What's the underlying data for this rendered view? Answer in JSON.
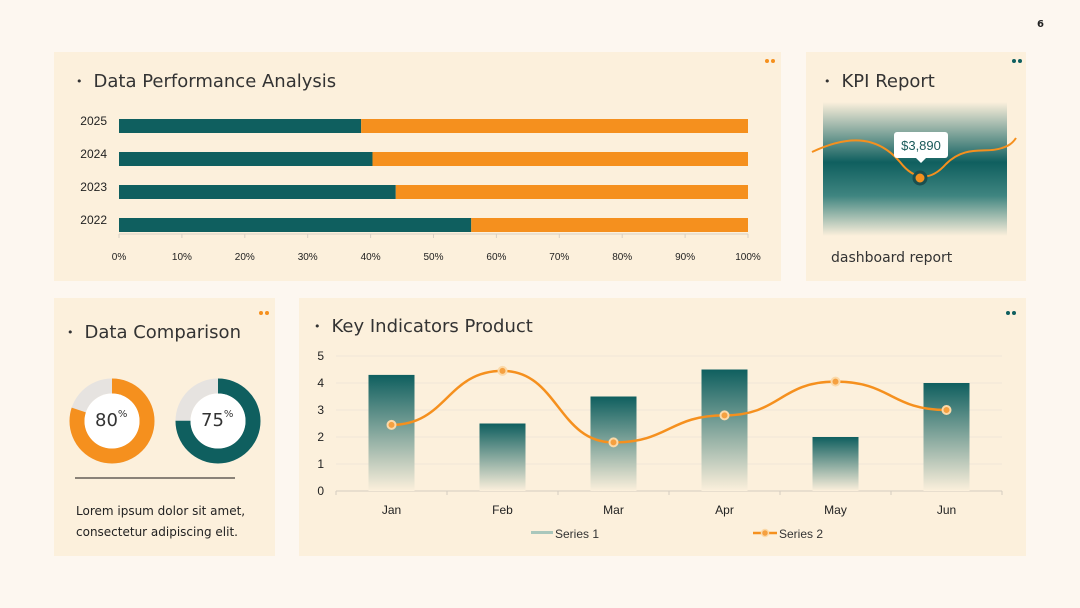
{
  "page_number": "6",
  "colors": {
    "teal": "#0f5f5f",
    "orange": "#f5901e",
    "grey": "#e6e3e0"
  },
  "perf": {
    "title": "Data Performance Analysis",
    "chart": {
      "type": "bar",
      "orientation": "horizontal-stacked-100",
      "categories": [
        "2025",
        "2024",
        "2023",
        "2022"
      ],
      "series": [
        {
          "values": [
            38.5,
            40.3,
            44,
            56
          ],
          "color": "#0f5f5f"
        },
        {
          "values": [
            61.5,
            59.7,
            56,
            44
          ],
          "color": "#f5901e"
        }
      ],
      "x_ticks": [
        "0%",
        "10%",
        "20%",
        "30%",
        "40%",
        "50%",
        "60%",
        "70%",
        "80%",
        "90%",
        "100%"
      ],
      "xlim": [
        0,
        100
      ]
    }
  },
  "kpi": {
    "title": "KPI Report",
    "value": "$3,890",
    "subtitle": "dashboard report"
  },
  "comparison": {
    "title": "Data Comparison",
    "donut1": {
      "value": 80,
      "label": "80",
      "unit": "%"
    },
    "donut2": {
      "value": 75,
      "label": "75",
      "unit": "%"
    },
    "text_line1": "Lorem ipsum dolor sit amet,",
    "text_line2": "consectetur adipiscing elit."
  },
  "key": {
    "title": "Key Indicators Product",
    "chart": {
      "type": "bar",
      "categories": [
        "Jan",
        "Feb",
        "Mar",
        "Apr",
        "May",
        "Jun"
      ],
      "series": [
        {
          "name": "Series 1",
          "type": "bar",
          "values": [
            4.3,
            2.5,
            3.5,
            4.5,
            2.0,
            4.0
          ]
        },
        {
          "name": "Series 2",
          "type": "line",
          "values": [
            2.45,
            4.45,
            1.8,
            2.8,
            4.05,
            3.0
          ]
        }
      ],
      "y_ticks": [
        "0",
        "1",
        "2",
        "3",
        "4",
        "5"
      ],
      "ylim": [
        0,
        5
      ]
    }
  }
}
